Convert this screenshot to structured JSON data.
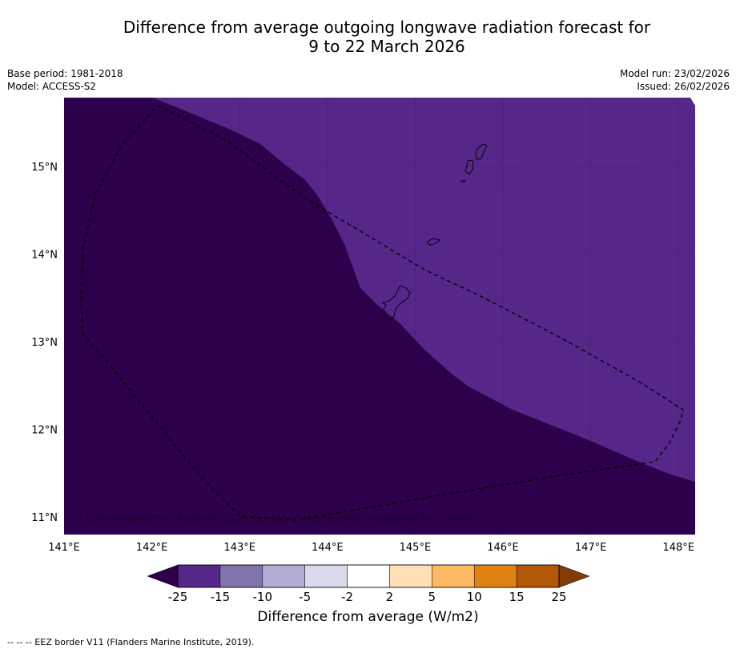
{
  "title_line1": "Difference from average outgoing longwave radiation forecast for",
  "title_line2": "9 to 22 March 2026",
  "base_period": "Base period: 1981-2018",
  "model": "Model: ACCESS-S2",
  "model_run": "Model run: 23/02/2026",
  "issued": "Issued: 26/02/2026",
  "copyright": "© Commonwealth of Australia 2026, Bureau of Meteorology, supported by COSPPac",
  "footnote": "--  --  -- EEZ border V11 (Flanders Marine Institute, 2019).",
  "chart_data": {
    "type": "heatmap",
    "xlabel": "",
    "ylabel": "",
    "x_ticks": [
      "141°E",
      "142°E",
      "143°E",
      "144°E",
      "145°E",
      "146°E",
      "147°E",
      "148°E"
    ],
    "x_tick_values": [
      141,
      142,
      143,
      144,
      145,
      146,
      147,
      148
    ],
    "y_ticks": [
      "15°N",
      "14°N",
      "13°N",
      "12°N",
      "11°N"
    ],
    "y_tick_values": [
      15,
      14,
      13,
      12,
      11
    ],
    "xlim": [
      141,
      148.2
    ],
    "ylim": [
      10.8,
      15.8
    ],
    "regions": [
      {
        "name": "below -25 W/m2",
        "color": "#2d004b",
        "description": "west and south of map"
      },
      {
        "name": "-25 to -15 W/m2",
        "color": "#542788",
        "description": "north-east of map"
      }
    ],
    "colorbar": {
      "label": "Difference from average (W/m2)",
      "tick_labels": [
        "-25",
        "-15",
        "-10",
        "-5",
        "-2",
        "2",
        "5",
        "10",
        "15",
        "25"
      ],
      "tick_values": [
        -25,
        -15,
        -10,
        -5,
        -2,
        2,
        5,
        10,
        15,
        25
      ],
      "under_color": "#2d004b",
      "over_color": "#7f3b08",
      "colors": [
        "#542788",
        "#8073ac",
        "#b2abd2",
        "#d8daeb",
        "#ffffff",
        "#fee0b6",
        "#fdb863",
        "#e08214",
        "#b35806"
      ]
    }
  }
}
